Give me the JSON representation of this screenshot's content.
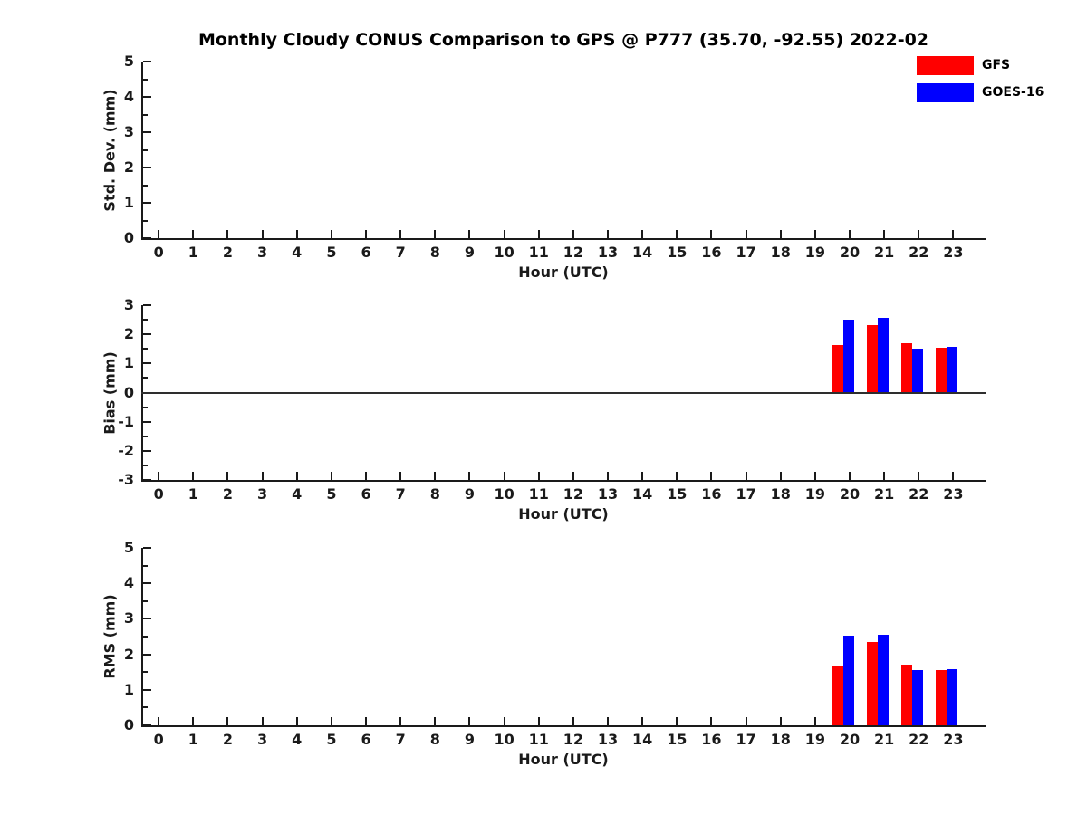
{
  "title": "Monthly Cloudy CONUS Comparison to GPS @ P777 (35.70, -92.55) 2022-02",
  "legend": {
    "position": "top-right",
    "items": [
      {
        "label": "GFS",
        "color": "#ff0000"
      },
      {
        "label": "GOES-16",
        "color": "#0000ff"
      }
    ]
  },
  "colors": {
    "gfs": "#ff0000",
    "goes16": "#0000ff",
    "axis": "#1a1a1a",
    "zero_line": "#2e2e2e",
    "background": "#ffffff"
  },
  "chart_data": [
    {
      "id": "stddev",
      "type": "bar",
      "ylabel": "Std. Dev. (mm)",
      "xlabel": "Hour (UTC)",
      "ylim": [
        0,
        5
      ],
      "yticks": [
        0,
        1,
        2,
        3,
        4,
        5
      ],
      "y_minor_step": 0.5,
      "grid": false,
      "zero_line": false,
      "categories": [
        0,
        1,
        2,
        3,
        4,
        5,
        6,
        7,
        8,
        9,
        10,
        11,
        12,
        13,
        14,
        15,
        16,
        17,
        18,
        19,
        20,
        21,
        22,
        23
      ],
      "series": [
        {
          "name": "GFS",
          "color": "#ff0000",
          "values": [
            null,
            null,
            null,
            null,
            null,
            null,
            null,
            null,
            null,
            null,
            null,
            null,
            null,
            null,
            null,
            null,
            null,
            null,
            null,
            null,
            null,
            null,
            null,
            null
          ]
        },
        {
          "name": "GOES-16",
          "color": "#0000ff",
          "values": [
            null,
            null,
            null,
            null,
            null,
            null,
            null,
            null,
            null,
            null,
            null,
            null,
            null,
            null,
            null,
            null,
            null,
            null,
            null,
            null,
            null,
            null,
            null,
            null
          ]
        }
      ],
      "note": "no bars visible in this panel"
    },
    {
      "id": "bias",
      "type": "bar",
      "ylabel": "Bias (mm)",
      "xlabel": "Hour (UTC)",
      "ylim": [
        -3,
        3
      ],
      "yticks": [
        -3,
        -2,
        -1,
        0,
        1,
        2,
        3
      ],
      "y_minor_step": 0.5,
      "grid": false,
      "zero_line": true,
      "categories": [
        0,
        1,
        2,
        3,
        4,
        5,
        6,
        7,
        8,
        9,
        10,
        11,
        12,
        13,
        14,
        15,
        16,
        17,
        18,
        19,
        20,
        21,
        22,
        23
      ],
      "series": [
        {
          "name": "GFS",
          "color": "#ff0000",
          "values": [
            null,
            null,
            null,
            null,
            null,
            null,
            null,
            null,
            null,
            null,
            null,
            null,
            null,
            null,
            null,
            null,
            null,
            null,
            null,
            null,
            1.63,
            2.33,
            1.7,
            1.55
          ]
        },
        {
          "name": "GOES-16",
          "color": "#0000ff",
          "values": [
            null,
            null,
            null,
            null,
            null,
            null,
            null,
            null,
            null,
            null,
            null,
            null,
            null,
            null,
            null,
            null,
            null,
            null,
            null,
            null,
            2.5,
            2.56,
            1.52,
            1.57
          ]
        }
      ]
    },
    {
      "id": "rms",
      "type": "bar",
      "ylabel": "RMS (mm)",
      "xlabel": "Hour (UTC)",
      "ylim": [
        0,
        5
      ],
      "yticks": [
        0,
        1,
        2,
        3,
        4,
        5
      ],
      "y_minor_step": 0.5,
      "grid": false,
      "zero_line": false,
      "categories": [
        0,
        1,
        2,
        3,
        4,
        5,
        6,
        7,
        8,
        9,
        10,
        11,
        12,
        13,
        14,
        15,
        16,
        17,
        18,
        19,
        20,
        21,
        22,
        23
      ],
      "series": [
        {
          "name": "GFS",
          "color": "#ff0000",
          "values": [
            null,
            null,
            null,
            null,
            null,
            null,
            null,
            null,
            null,
            null,
            null,
            null,
            null,
            null,
            null,
            null,
            null,
            null,
            null,
            null,
            1.66,
            2.34,
            1.72,
            1.56
          ]
        },
        {
          "name": "GOES-16",
          "color": "#0000ff",
          "values": [
            null,
            null,
            null,
            null,
            null,
            null,
            null,
            null,
            null,
            null,
            null,
            null,
            null,
            null,
            null,
            null,
            null,
            null,
            null,
            null,
            2.52,
            2.55,
            1.55,
            1.57
          ]
        }
      ]
    }
  ]
}
